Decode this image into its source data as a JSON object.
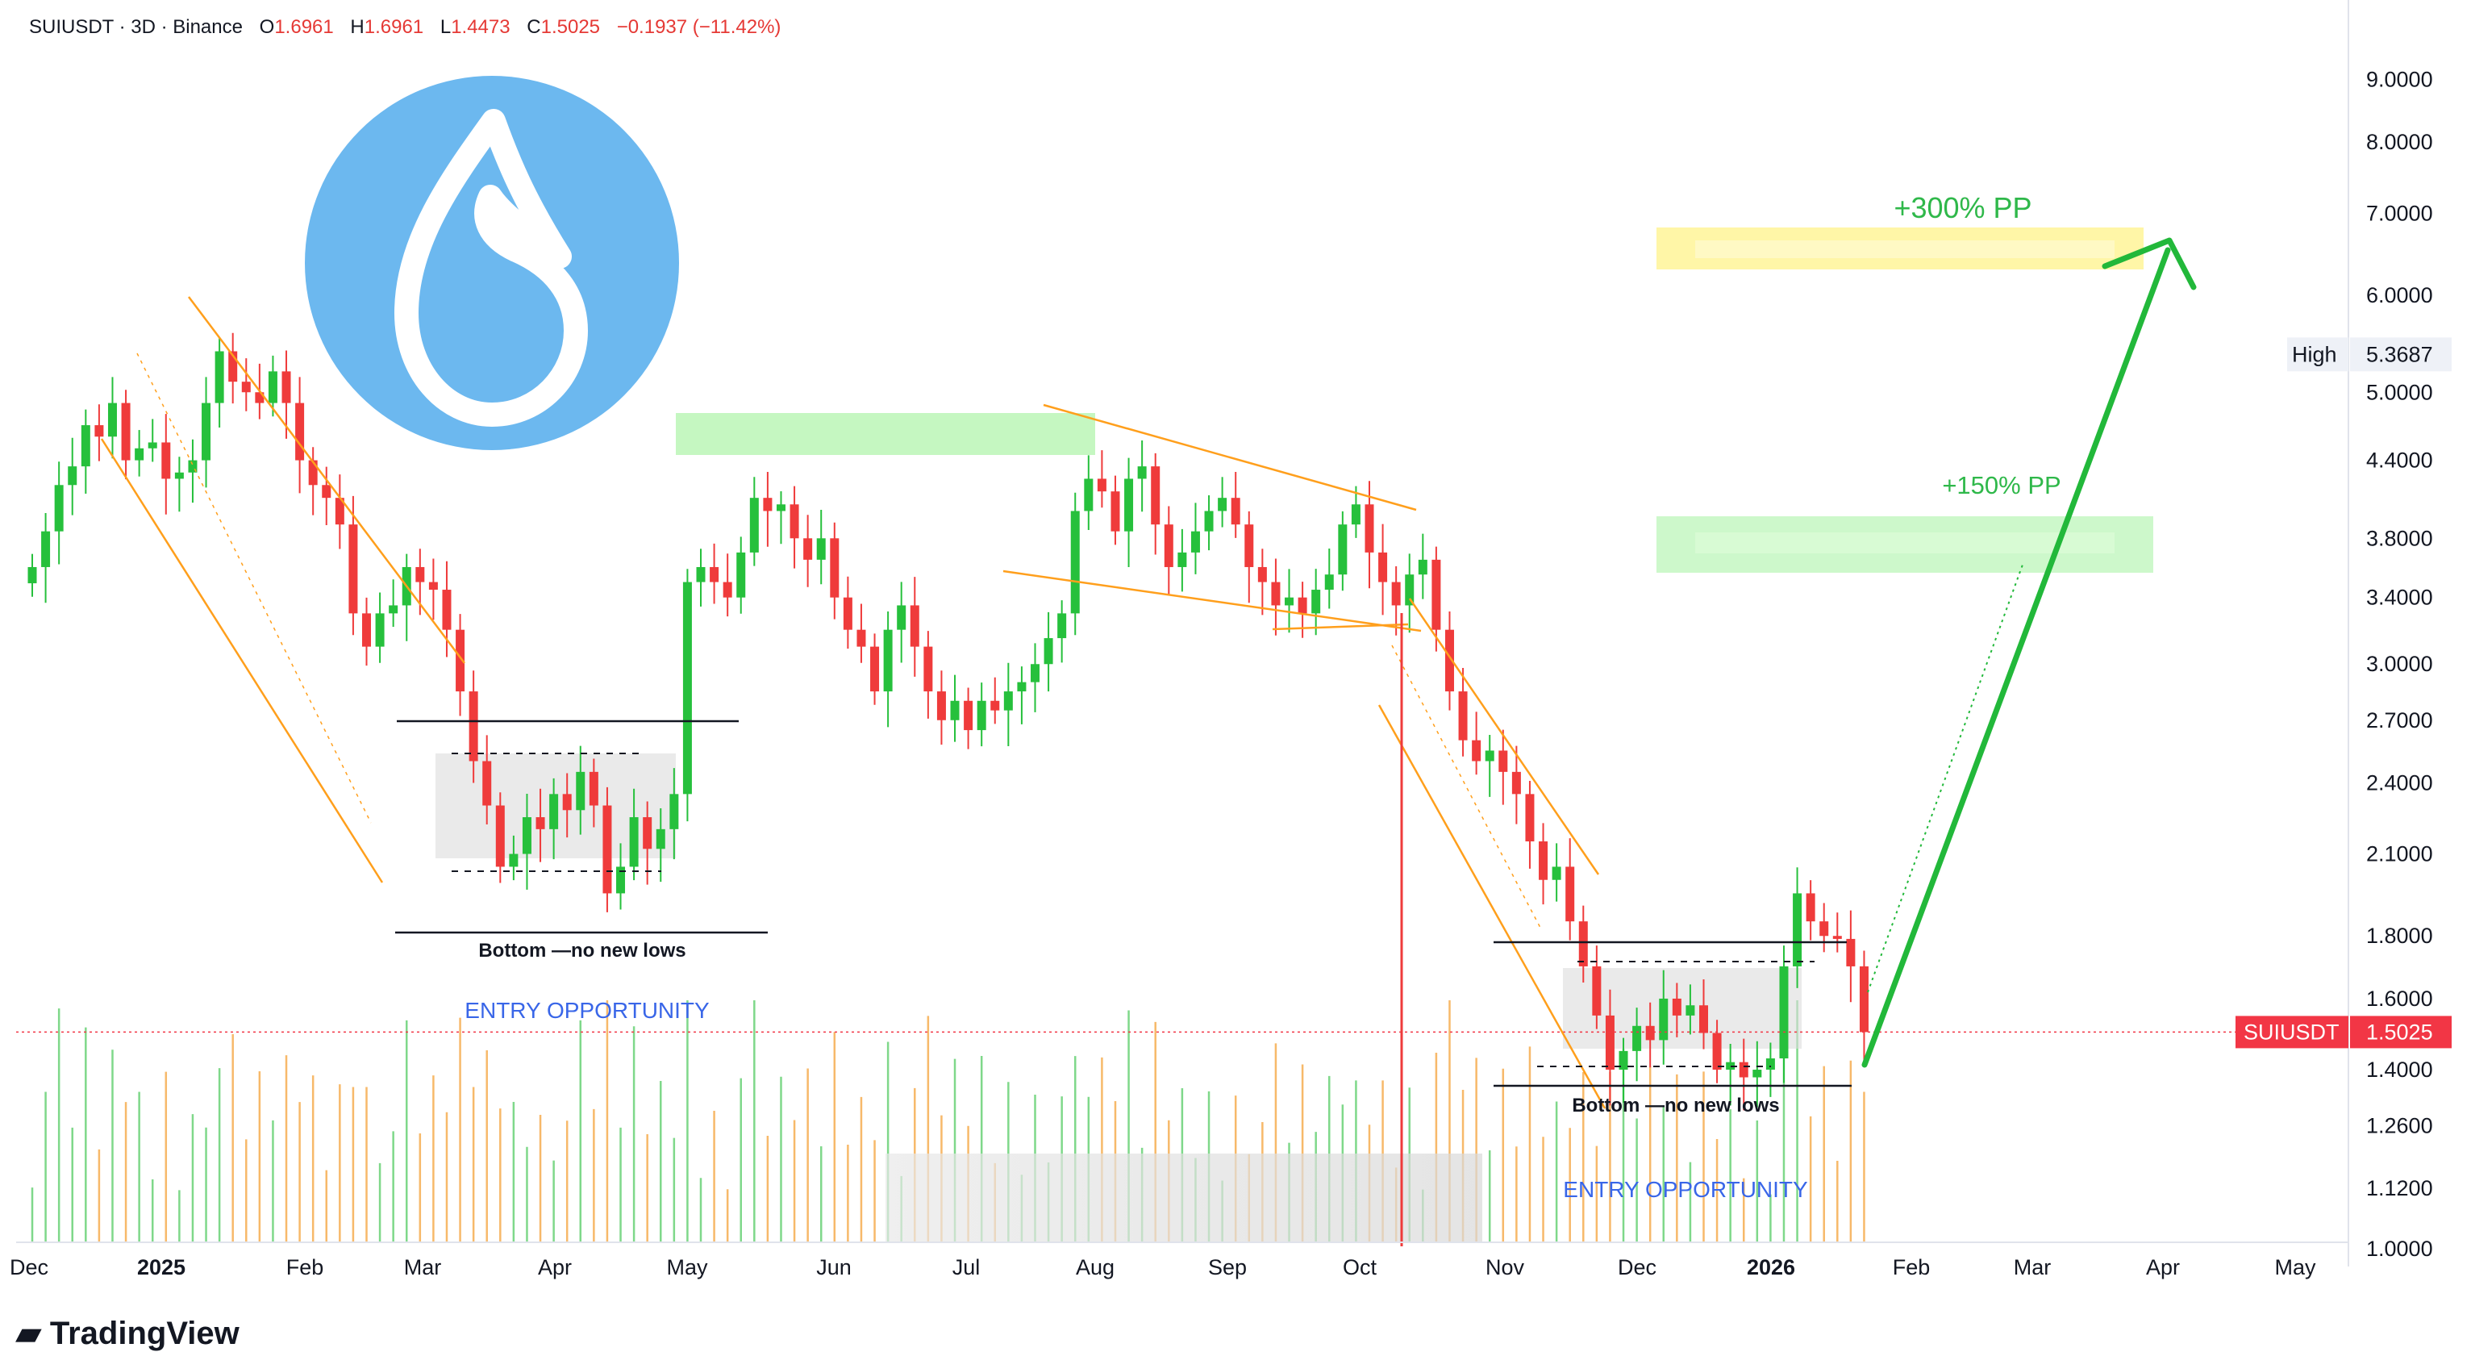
{
  "header": {
    "symbol": "SUIUSDT · 3D · Binance",
    "open_label": "O",
    "open": "1.6961",
    "high_label": "H",
    "high": "1.6961",
    "low_label": "L",
    "low": "1.4473",
    "close_label": "C",
    "close": "1.5025",
    "change": "−0.1937 (−11.42%)"
  },
  "brand": "TradingView",
  "colors": {
    "up": "#26c03c",
    "down": "#ef3b3b",
    "trend": "#ff9f1c",
    "target": "#22b83a",
    "accent_blue": "#6cb8ef"
  },
  "chart_data": {
    "type": "candlestick",
    "symbol": "SUIUSDT",
    "y_scale": "log",
    "y_ticks": [
      "9.0000",
      "8.0000",
      "7.0000",
      "6.0000",
      "5.0000",
      "4.4000",
      "3.8000",
      "3.4000",
      "3.0000",
      "2.7000",
      "2.4000",
      "2.1000",
      "1.8000",
      "1.6000",
      "1.4000",
      "1.2600",
      "1.1200",
      "1.0000"
    ],
    "x_ticks": [
      "Dec",
      "2025",
      "Feb",
      "Mar",
      "Apr",
      "May",
      "Jun",
      "Jul",
      "Aug",
      "Sep",
      "Oct",
      "Nov",
      "Dec",
      "2026",
      "Feb",
      "Mar",
      "Apr",
      "May"
    ],
    "price_labels": [
      {
        "name": "High",
        "value": "5.3687"
      },
      {
        "name": "SUIUSDT",
        "value": "1.5025"
      }
    ],
    "annotations": [
      "+300% PP",
      "+150% PP",
      "Bottom —no new lows",
      "ENTRY OPPORTUNITY",
      "Bottom —no new lows",
      "ENTRY OPPORTUNITY"
    ],
    "targets": [
      {
        "label": "+300% PP",
        "value": 6.0
      },
      {
        "label": "+150% PP",
        "value": 3.5
      }
    ],
    "last_price": 1.5025,
    "high_marker": 5.3687,
    "candles_close": [
      3.6,
      3.85,
      4.2,
      4.35,
      4.7,
      4.6,
      4.9,
      4.4,
      4.5,
      4.55,
      4.25,
      4.3,
      4.4,
      4.9,
      5.4,
      5.1,
      5.0,
      4.9,
      5.2,
      4.9,
      4.4,
      4.2,
      4.1,
      3.9,
      3.3,
      3.1,
      3.3,
      3.35,
      3.6,
      3.5,
      3.45,
      3.2,
      2.85,
      2.5,
      2.3,
      2.05,
      2.1,
      2.25,
      2.2,
      2.35,
      2.28,
      2.45,
      2.3,
      1.95,
      2.05,
      2.25,
      2.12,
      2.2,
      2.35,
      3.5,
      3.6,
      3.5,
      3.4,
      3.7,
      4.1,
      4.0,
      4.05,
      3.8,
      3.65,
      3.8,
      3.4,
      3.2,
      3.1,
      2.85,
      3.2,
      3.35,
      3.1,
      2.85,
      2.7,
      2.8,
      2.65,
      2.8,
      2.75,
      2.85,
      2.9,
      3.0,
      3.15,
      3.3,
      4.0,
      4.25,
      4.15,
      3.85,
      4.25,
      4.35,
      3.9,
      3.6,
      3.7,
      3.85,
      4.0,
      4.1,
      3.9,
      3.6,
      3.5,
      3.35,
      3.4,
      3.3,
      3.45,
      3.55,
      3.9,
      4.05,
      3.7,
      3.5,
      3.35,
      3.55,
      3.65,
      3.2,
      2.85,
      2.6,
      2.5,
      2.55,
      2.45,
      2.35,
      2.15,
      2.0,
      2.05,
      1.85,
      1.7,
      1.55,
      1.4,
      1.45,
      1.52,
      1.48,
      1.6,
      1.55,
      1.58,
      1.5,
      1.4,
      1.42,
      1.38,
      1.4,
      1.43,
      1.7,
      1.95,
      1.85,
      1.8,
      1.79,
      1.7,
      1.5025
    ]
  }
}
